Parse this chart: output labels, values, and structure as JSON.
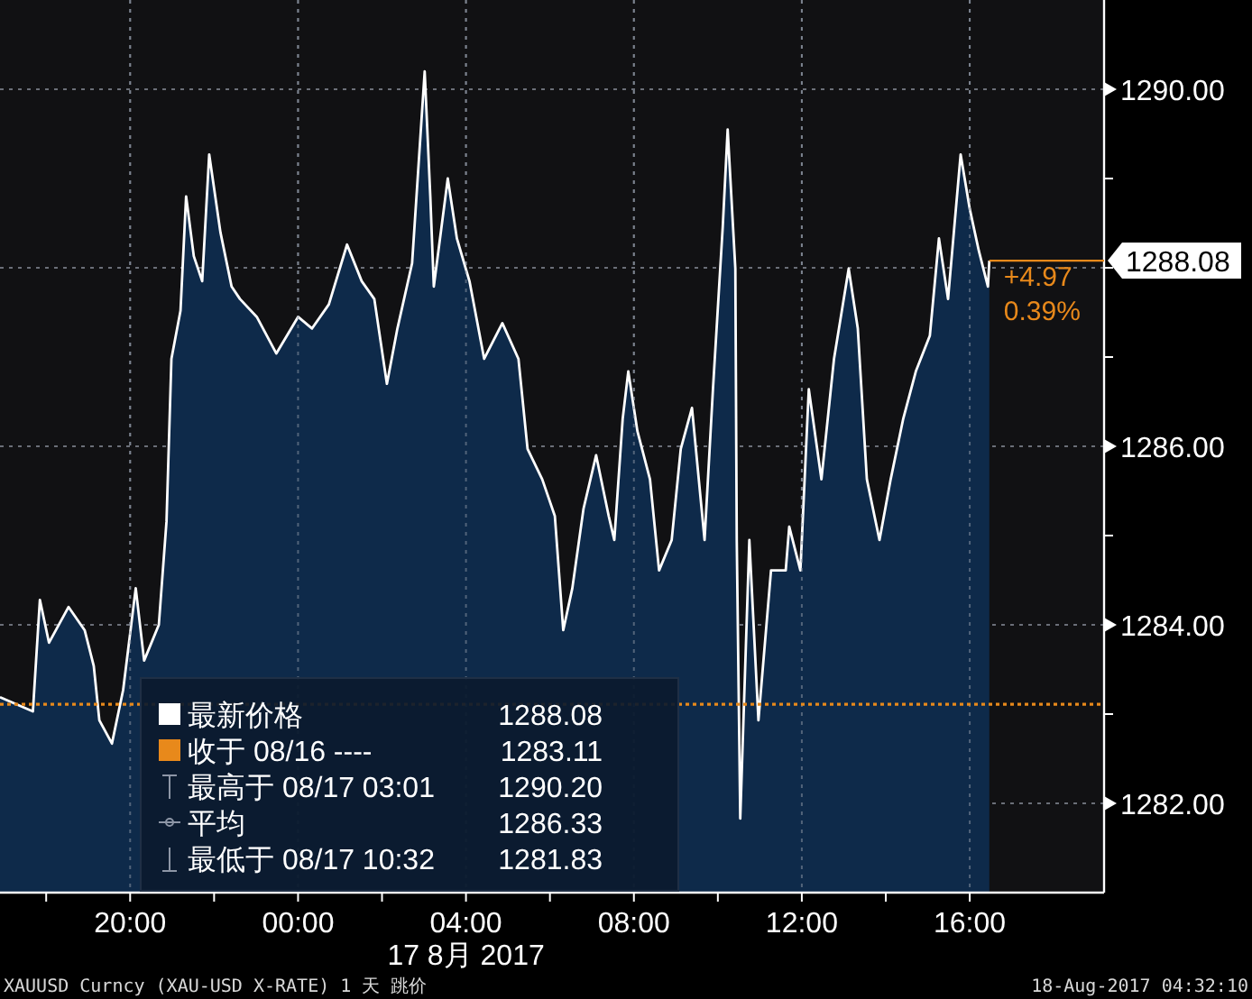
{
  "chart_data": {
    "type": "area",
    "xlabel": "17 8月 2017",
    "x": [
      "2017-08-16T16:54",
      "2017-08-16T17:41",
      "2017-08-16T17:51",
      "2017-08-16T18:04",
      "2017-08-16T18:32",
      "2017-08-16T18:55",
      "2017-08-16T19:08",
      "2017-08-16T19:16",
      "2017-08-16T19:34",
      "2017-08-16T19:50",
      "2017-08-16T20:08",
      "2017-08-16T20:20",
      "2017-08-16T20:41",
      "2017-08-16T20:52",
      "2017-08-16T20:59",
      "2017-08-16T21:12",
      "2017-08-16T21:20",
      "2017-08-16T21:31",
      "2017-08-16T21:43",
      "2017-08-16T21:53",
      "2017-08-16T22:09",
      "2017-08-16T22:25",
      "2017-08-16T22:37",
      "2017-08-16T23:01",
      "2017-08-16T23:29",
      "2017-08-17T00:00",
      "2017-08-17T00:20",
      "2017-08-17T00:44",
      "2017-08-17T01:10",
      "2017-08-17T01:31",
      "2017-08-17T01:49",
      "2017-08-17T02:07",
      "2017-08-17T02:22",
      "2017-08-17T02:43",
      "2017-08-17T03:01",
      "2017-08-17T03:09",
      "2017-08-17T03:14",
      "2017-08-17T03:34",
      "2017-08-17T03:47",
      "2017-08-17T04:05",
      "2017-08-17T04:26",
      "2017-08-17T04:52",
      "2017-08-17T05:15",
      "2017-08-17T05:28",
      "2017-08-17T05:49",
      "2017-08-17T06:07",
      "2017-08-17T06:19",
      "2017-08-17T06:32",
      "2017-08-17T06:48",
      "2017-08-17T07:06",
      "2017-08-17T07:24",
      "2017-08-17T07:32",
      "2017-08-17T07:44",
      "2017-08-17T07:52",
      "2017-08-17T08:05",
      "2017-08-17T08:23",
      "2017-08-17T08:36",
      "2017-08-17T08:54",
      "2017-08-17T09:07",
      "2017-08-17T09:23",
      "2017-08-17T09:41",
      "2017-08-17T09:53",
      "2017-08-17T10:07",
      "2017-08-17T10:14",
      "2017-08-17T10:25",
      "2017-08-17T10:27",
      "2017-08-17T10:32",
      "2017-08-17T10:45",
      "2017-08-17T10:58",
      "2017-08-17T11:16",
      "2017-08-17T11:37",
      "2017-08-17T11:42",
      "2017-08-17T11:58",
      "2017-08-17T12:10",
      "2017-08-17T12:28",
      "2017-08-17T12:46",
      "2017-08-17T13:07",
      "2017-08-17T13:20",
      "2017-08-17T13:33",
      "2017-08-17T13:51",
      "2017-08-17T14:07",
      "2017-08-17T14:25",
      "2017-08-17T14:43",
      "2017-08-17T15:03",
      "2017-08-17T15:16",
      "2017-08-17T15:29",
      "2017-08-17T15:47",
      "2017-08-17T16:00",
      "2017-08-17T16:13",
      "2017-08-17T16:26",
      "2017-08-17T16:28"
    ],
    "series": [
      {
        "color": "#0e2a4a",
        "values": [
          1283.19,
          1283.03,
          1284.28,
          1283.8,
          1284.2,
          1283.94,
          1283.54,
          1282.93,
          1282.67,
          1283.27,
          1284.41,
          1283.6,
          1284.0,
          1285.16,
          1286.98,
          1287.52,
          1288.8,
          1288.13,
          1287.85,
          1289.27,
          1288.4,
          1287.79,
          1287.65,
          1287.45,
          1287.04,
          1287.45,
          1287.32,
          1287.59,
          1288.26,
          1287.85,
          1287.65,
          1286.7,
          1287.32,
          1288.05,
          1290.2,
          1288.8,
          1287.79,
          1289.0,
          1288.33,
          1287.85,
          1286.98,
          1287.38,
          1286.98,
          1285.97,
          1285.63,
          1285.22,
          1283.94,
          1284.41,
          1285.3,
          1285.9,
          1285.22,
          1284.95,
          1286.31,
          1286.84,
          1286.17,
          1285.63,
          1284.61,
          1284.95,
          1285.97,
          1286.43,
          1284.95,
          1286.64,
          1288.46,
          1289.55,
          1287.99,
          1284.95,
          1281.83,
          1284.95,
          1282.93,
          1284.61,
          1284.61,
          1285.1,
          1284.61,
          1286.64,
          1285.63,
          1286.98,
          1287.99,
          1287.32,
          1285.63,
          1284.95,
          1285.63,
          1286.31,
          1286.84,
          1287.24,
          1288.33,
          1287.65,
          1289.27,
          1288.66,
          1288.19,
          1287.79,
          1288.08
        ]
      }
    ],
    "xlim": [
      "2017-08-16T16:54",
      "2017-08-17T19:12"
    ],
    "xticks": [
      {
        "value": "2017-08-16T18:00",
        "label": null
      },
      {
        "value": "2017-08-16T20:00",
        "label": "20:00"
      },
      {
        "value": "2017-08-16T22:00",
        "label": null
      },
      {
        "value": "2017-08-17T00:00",
        "label": "00:00"
      },
      {
        "value": "2017-08-17T02:00",
        "label": null
      },
      {
        "value": "2017-08-17T04:00",
        "label": "04:00"
      },
      {
        "value": "2017-08-17T06:00",
        "label": null
      },
      {
        "value": "2017-08-17T08:00",
        "label": "08:00"
      },
      {
        "value": "2017-08-17T10:00",
        "label": null
      },
      {
        "value": "2017-08-17T12:00",
        "label": "12:00"
      },
      {
        "value": "2017-08-17T14:00",
        "label": null
      },
      {
        "value": "2017-08-17T16:00",
        "label": "16:00"
      }
    ],
    "ylim": [
      1281,
      1291
    ],
    "yticks": [
      {
        "value": 1282,
        "label": "1282.00"
      },
      {
        "value": 1283,
        "label": null
      },
      {
        "value": 1284,
        "label": "1284.00"
      },
      {
        "value": 1285,
        "label": null
      },
      {
        "value": 1286,
        "label": "1286.00"
      },
      {
        "value": 1287,
        "label": null
      },
      {
        "value": 1288,
        "label": null
      },
      {
        "value": 1289,
        "label": null
      },
      {
        "value": 1290,
        "label": "1290.00"
      }
    ],
    "grid": true,
    "ref_lines": [
      {
        "axis": "y",
        "value": 1283.11,
        "color": "#e8891b",
        "line_style": "dotted"
      }
    ],
    "annotations": [
      "最新价格",
      "1288.08",
      "收于 08/16 ----",
      "1283.11",
      "最高于 08/17 03:01",
      "1290.20",
      "平均",
      "1286.33",
      "最低于 08/17 10:32",
      "1281.83",
      {
        "text": "1288.08",
        "x": "2017-08-17T16:28",
        "y": 1288.08
      },
      "+4.97",
      "0.39%",
      "XAUUSD Curncy (XAU-USD X-RATE) 1 天 跳价",
      "18-Aug-2017 04:32:10"
    ]
  }
}
